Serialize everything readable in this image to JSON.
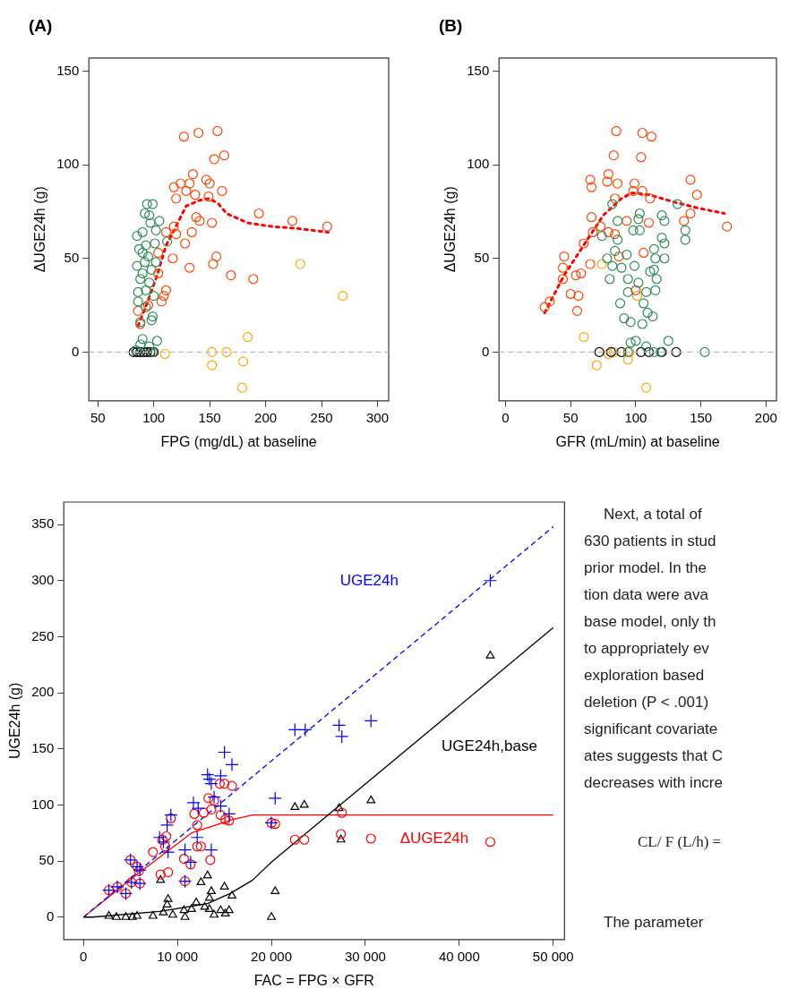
{
  "chart_data": [
    {
      "type": "scatter",
      "title": "(A)",
      "xlabel": "FPG (mg/dL) at baseline",
      "ylabel": "ΔUGE24h (g)",
      "xlim": [
        42,
        310
      ],
      "ylim": [
        -26,
        157
      ],
      "xticks": [
        50,
        100,
        150,
        200,
        250,
        300
      ],
      "yticks": [
        0,
        50,
        100,
        150
      ],
      "ref_lines": [
        {
          "axis": "y",
          "value": 0,
          "color": "#bbbbbb",
          "line_style": "dashed"
        }
      ],
      "series": [
        {
          "color": "#2e8b57",
          "marker": "circle",
          "x": [
            99,
            94,
            92,
            96,
            105,
            97,
            102,
            85,
            90,
            112,
            87,
            93,
            101,
            85,
            92,
            98,
            102,
            88,
            96,
            86,
            93,
            100,
            86,
            93,
            99,
            98,
            88,
            90,
            95,
            90,
            90,
            103,
            88,
            96,
            84,
            99
          ],
          "values": [
            79,
            79,
            74,
            73,
            70,
            69,
            65,
            62,
            64,
            59,
            55,
            57,
            58,
            46,
            48,
            44,
            48,
            39,
            37,
            32,
            33,
            30,
            27,
            24,
            19,
            17,
            16,
            53,
            51,
            42,
            7,
            6,
            4,
            3,
            1,
            0
          ]
        },
        {
          "color": "#000000",
          "marker": "circle",
          "x": [
            82,
            85,
            88,
            91,
            94,
            97,
            100
          ],
          "values": [
            0,
            0,
            0,
            0,
            0,
            0,
            0
          ]
        },
        {
          "color": "#ff4500",
          "marker": "circle",
          "x": [
            127,
            140,
            157,
            154,
            163,
            135,
            118,
            124,
            132,
            129,
            120,
            137,
            149,
            150,
            161,
            138,
            118,
            111,
            120,
            134,
            128,
            104,
            117,
            156,
            153,
            132,
            169,
            189,
            104,
            111,
            109,
            107,
            95,
            86,
            88
          ],
          "values": [
            115,
            117,
            118,
            103,
            105,
            95,
            88,
            90,
            90,
            86,
            82,
            84,
            83,
            90,
            86,
            72,
            67,
            64,
            63,
            64,
            58,
            53,
            50,
            51,
            47,
            45,
            41,
            39,
            42,
            33,
            30,
            27,
            25,
            22,
            15
          ]
        },
        {
          "color": "#ff4500",
          "marker": "circle",
          "x": [
            147,
            141,
            152,
            194,
            224,
            255
          ],
          "values": [
            92,
            70,
            69,
            74,
            70,
            67
          ]
        },
        {
          "color": "#ffa500",
          "marker": "circle",
          "x": [
            231,
            184,
            152,
            165,
            152,
            180,
            179,
            110
          ],
          "values": [
            47,
            8,
            0,
            0,
            -7,
            -5,
            -19,
            -1
          ]
        },
        {
          "color": "#ffa500",
          "marker": "circle",
          "x": [
            269
          ],
          "values": [
            30
          ]
        },
        {
          "type": "line",
          "color": "#ff0000",
          "marker": "none",
          "line_style": "dotted",
          "x": [
            86,
            94,
            103,
            111,
            119,
            129,
            141,
            150,
            158,
            165,
            184,
            206,
            228,
            256
          ],
          "values": [
            14,
            26,
            41,
            57,
            66,
            78,
            81,
            82,
            79,
            74,
            69,
            67,
            66,
            64
          ]
        }
      ]
    },
    {
      "type": "scatter",
      "title": "(B)",
      "xlabel": "GFR (mL/min) at baseline",
      "ylabel": "ΔUGE24h (g)",
      "xlim": [
        -5,
        208
      ],
      "ylim": [
        -26,
        157
      ],
      "xticks": [
        0,
        50,
        100,
        150,
        200
      ],
      "yticks": [
        0,
        50,
        100,
        150
      ],
      "ref_lines": [
        {
          "axis": "y",
          "value": 0,
          "color": "#bbbbbb",
          "line_style": "dashed"
        }
      ],
      "series": [
        {
          "color": "#2e8b57",
          "marker": "circle",
          "x": [
            82,
            132,
            103,
            86,
            102,
            120,
            122,
            98,
            103,
            138,
            138,
            74,
            120,
            86,
            114,
            122,
            84,
            93,
            122,
            78,
            82,
            89,
            99,
            115,
            114,
            80,
            94,
            111,
            116,
            102,
            94,
            108,
            115,
            88,
            106,
            109,
            113,
            91,
            96,
            105,
            125,
            96,
            100,
            108,
            153,
            114,
            119,
            94
          ],
          "values": [
            79,
            79,
            74,
            70,
            71,
            73,
            70,
            65,
            65,
            65,
            60,
            62,
            61,
            60,
            55,
            58,
            54,
            52,
            50,
            50,
            46,
            45,
            46,
            50,
            44,
            39,
            39,
            43,
            39,
            37,
            32,
            32,
            33,
            26,
            26,
            21,
            19,
            18,
            16,
            15,
            6,
            5,
            6,
            3,
            0,
            0,
            0,
            0
          ]
        },
        {
          "color": "#000000",
          "marker": "circle",
          "x": [
            72,
            81,
            89,
            104,
            110,
            120,
            131
          ],
          "values": [
            0,
            0,
            0,
            0,
            0,
            0,
            0
          ]
        },
        {
          "color": "#ff4500",
          "marker": "circle",
          "x": [
            85,
            105,
            112,
            83,
            104,
            79,
            65,
            66,
            78,
            86,
            99,
            147,
            98,
            105,
            111,
            84,
            66,
            73,
            67,
            79,
            84,
            60,
            45,
            44,
            65,
            54,
            58,
            44,
            87,
            106,
            50,
            56,
            55,
            30,
            34,
            100
          ],
          "values": [
            118,
            117,
            115,
            105,
            104,
            95,
            92,
            88,
            91,
            90,
            90,
            84,
            86,
            86,
            82,
            82,
            72,
            67,
            64,
            64,
            63,
            58,
            51,
            45,
            47,
            41,
            42,
            39,
            51,
            53,
            31,
            30,
            22,
            24,
            27,
            33
          ]
        },
        {
          "color": "#ff4500",
          "marker": "circle",
          "x": [
            142,
            93,
            110,
            137,
            142,
            170
          ],
          "values": [
            92,
            70,
            69,
            70,
            74,
            67
          ]
        },
        {
          "color": "#ffa500",
          "marker": "circle",
          "x": [
            74,
            60,
            70,
            79,
            83,
            95,
            94,
            108
          ],
          "values": [
            47,
            8,
            -7,
            -1,
            0,
            0,
            -4,
            -19
          ]
        },
        {
          "color": "#ffa500",
          "marker": "circle",
          "x": [
            101
          ],
          "values": [
            30
          ]
        },
        {
          "type": "line",
          "color": "#ff0000",
          "marker": "none",
          "line_style": "dotted",
          "x": [
            30,
            45,
            60,
            75,
            89,
            97,
            110,
            130,
            147,
            168
          ],
          "values": [
            21,
            41,
            57,
            73,
            82,
            85,
            84,
            80,
            77,
            74
          ]
        }
      ]
    },
    {
      "type": "scatter",
      "xlabel": "FAC = FPG × GFR",
      "ylabel": "UGE24h (g)",
      "xlim": [
        -2100,
        51200
      ],
      "ylim": [
        -20,
        370
      ],
      "xticks": [
        0,
        {
          "value": 10000,
          "label": "10 000"
        },
        {
          "value": 20000,
          "label": "20 000"
        },
        {
          "value": 30000,
          "label": "30 000"
        },
        {
          "value": 40000,
          "label": "40 000"
        },
        {
          "value": 50000,
          "label": "50 000"
        }
      ],
      "yticks": [
        0,
        50,
        100,
        150,
        200,
        250,
        300,
        350
      ],
      "series": [
        {
          "color": "#0000ff",
          "marker": "cross",
          "x": [
            43300,
            22500,
            23600,
            27200,
            27500,
            30600,
            15000,
            15800,
            13200,
            13400,
            14600,
            13600,
            13900,
            11700,
            12200,
            14600,
            15500,
            20400,
            9300,
            8900,
            8100,
            8500,
            12100,
            13600,
            10800,
            9000,
            11400,
            5000,
            5700,
            6000,
            5100,
            6000,
            4500,
            2700,
            3600,
            10800,
            20000
          ],
          "values": [
            300,
            167,
            167,
            171,
            161,
            175,
            147,
            136,
            127,
            123,
            126,
            119,
            107,
            102,
            97,
            99,
            92,
            106,
            91,
            82,
            71,
            67,
            71,
            60,
            60,
            58,
            49,
            51,
            45,
            42,
            31,
            30,
            21,
            24,
            27,
            32,
            84
          ]
        },
        {
          "color": "#ff0000",
          "marker": "circle",
          "x": [
            43300,
            30600,
            27400,
            27500,
            22500,
            23500,
            20400,
            20000,
            14500,
            15000,
            15800,
            13300,
            13900,
            13600,
            12800,
            11800,
            14600,
            15100,
            15500,
            12100,
            9300,
            8800,
            8400,
            8700,
            12100,
            12500,
            7400,
            10700,
            13500,
            11400,
            8200,
            9000,
            5000,
            5700,
            5900,
            5100,
            6000,
            4500,
            2700,
            3600,
            10800
          ],
          "values": [
            67,
            70,
            74,
            93,
            69,
            69,
            83,
            84,
            119,
            119,
            117,
            106,
            104,
            96,
            93,
            92,
            91,
            87,
            86,
            82,
            88,
            72,
            69,
            63,
            63,
            63,
            58,
            52,
            51,
            47,
            38,
            40,
            51,
            45,
            41,
            31,
            30,
            21,
            24,
            27,
            32
          ]
        },
        {
          "color": "#000000",
          "marker": "triangle",
          "x": [
            43300,
            30600,
            27200,
            27400,
            22500,
            23500,
            20400,
            20000,
            13200,
            12500,
            8200,
            13600,
            15000,
            15800,
            9000,
            13400,
            12000,
            8900,
            12900,
            14600,
            15500,
            13400,
            11500,
            10700,
            8500,
            9500,
            7400,
            5700,
            5200,
            4500,
            3500,
            2700,
            10800,
            13900,
            15100
          ],
          "values": [
            233,
            104,
            97,
            69,
            98,
            100,
            23,
            0,
            37,
            31,
            33,
            23,
            27,
            19,
            16,
            17,
            13,
            11,
            9,
            6,
            6,
            7,
            7,
            6,
            4,
            2,
            1,
            1,
            0,
            0,
            0,
            1,
            0,
            2,
            3
          ]
        },
        {
          "type": "line",
          "name": "UGE24h",
          "color": "#0000ff",
          "marker": "none",
          "line_style": "dashed",
          "x": [
            0,
            50000
          ],
          "values": [
            0,
            348
          ]
        },
        {
          "type": "line",
          "name": "UGE24h,base",
          "color": "#000000",
          "marker": "none",
          "line_style": "solid",
          "x": [
            0,
            950,
            8100,
            13200,
            15600,
            18000,
            20000,
            50000
          ],
          "values": [
            0,
            0,
            5,
            12,
            21,
            33,
            49,
            258
          ]
        },
        {
          "type": "line",
          "name": "ΔUGE24h",
          "color": "#ff0000",
          "marker": "none",
          "line_style": "solid",
          "x": [
            0,
            5700,
            11500,
            15900,
            18000,
            50000
          ],
          "values": [
            0,
            38,
            75,
            87,
            91,
            91
          ]
        }
      ]
    },
    {
      "type": "other",
      "annotations": [
        "Next, a total of",
        "630 patients in stud",
        "prior model. In the",
        "tion data were ava",
        "base model, only th",
        "to appropriately ev",
        "exploration based",
        "deletion (P < .001)",
        "significant covariate",
        "ates suggests that C",
        "decreases with incre",
        "CL/ F (L/h) =",
        "The parameter"
      ]
    }
  ]
}
